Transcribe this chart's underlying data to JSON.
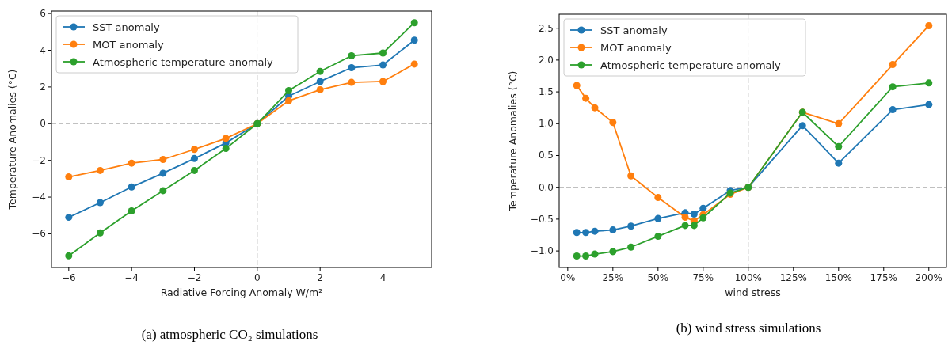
{
  "chart_data": [
    {
      "type": "line",
      "xlabel": "Radiative Forcing Anomaly W/m²",
      "ylabel": "Temperature Anomalies (°C)",
      "x": [
        -6,
        -5,
        -4,
        -3,
        -2,
        -1,
        0,
        1,
        2,
        3,
        4,
        5
      ],
      "series": [
        {
          "name": "SST anomaly",
          "color": "#1f77b4",
          "values": [
            -5.1,
            -4.3,
            -3.45,
            -2.7,
            -1.9,
            -1.05,
            0,
            1.5,
            2.3,
            3.05,
            3.2,
            4.55
          ]
        },
        {
          "name": "MOT anomaly",
          "color": "#ff7f0e",
          "values": [
            -2.9,
            -2.55,
            -2.15,
            -1.95,
            -1.4,
            -0.8,
            0,
            1.25,
            1.85,
            2.25,
            2.3,
            3.25
          ]
        },
        {
          "name": "Atmospheric temperature anomaly",
          "color": "#2ca02c",
          "values": [
            -7.2,
            -5.95,
            -4.75,
            -3.65,
            -2.55,
            -1.35,
            0,
            1.8,
            2.85,
            3.7,
            3.85,
            5.5
          ]
        }
      ],
      "xlim": [
        -6.55,
        5.55
      ],
      "xticks": [
        {
          "value": -6,
          "label": "−6"
        },
        {
          "value": -4,
          "label": "−4"
        },
        {
          "value": -2,
          "label": "−2"
        },
        0,
        2,
        4
      ],
      "ylim": [
        -7.835,
        6.135
      ],
      "yticks": [
        {
          "value": -6,
          "label": "−6"
        },
        {
          "value": -4,
          "label": "−4"
        },
        {
          "value": -2,
          "label": "−2"
        },
        0,
        2,
        4,
        6
      ],
      "ref_lines": [
        {
          "axis": "x",
          "value": 0,
          "color": "#b0b0b0",
          "line_style": "dashed"
        },
        {
          "axis": "y",
          "value": 0,
          "color": "#b0b0b0",
          "line_style": "dashed"
        }
      ],
      "grid": false,
      "legend": "top left",
      "marker": "circle",
      "line_style": "solid",
      "annotations": [
        "(a) atmospheric CO₂ simulations"
      ]
    },
    {
      "type": "line",
      "xlabel": "wind stress",
      "ylabel": "Temperature Anomalies (°C)",
      "x": [
        5,
        10,
        15,
        25,
        35,
        50,
        65,
        70,
        75,
        90,
        100,
        130,
        150,
        180,
        200
      ],
      "series": [
        {
          "name": "SST anomaly",
          "color": "#1f77b4",
          "values": [
            -0.71,
            -0.71,
            -0.69,
            -0.67,
            -0.61,
            -0.49,
            -0.4,
            -0.42,
            -0.33,
            -0.05,
            0,
            0.97,
            0.38,
            1.22,
            1.3
          ]
        },
        {
          "name": "MOT anomaly",
          "color": "#ff7f0e",
          "values": [
            1.6,
            1.4,
            1.25,
            1.02,
            0.18,
            -0.16,
            -0.47,
            -0.53,
            -0.43,
            -0.11,
            0,
            1.18,
            1.0,
            1.93,
            2.54
          ]
        },
        {
          "name": "Atmospheric temperature anomaly",
          "color": "#2ca02c",
          "values": [
            -1.08,
            -1.08,
            -1.05,
            -1.01,
            -0.94,
            -0.77,
            -0.6,
            -0.6,
            -0.48,
            -0.09,
            0,
            1.18,
            0.64,
            1.58,
            1.64
          ]
        }
      ],
      "xlim": [
        -4.75,
        209.75
      ],
      "xticks": [
        {
          "value": 0,
          "label": "0%"
        },
        {
          "value": 25,
          "label": "25%"
        },
        {
          "value": 50,
          "label": "50%"
        },
        {
          "value": 75,
          "label": "75%"
        },
        {
          "value": 100,
          "label": "100%"
        },
        {
          "value": 125,
          "label": "125%"
        },
        {
          "value": 150,
          "label": "150%"
        },
        {
          "value": 175,
          "label": "175%"
        },
        {
          "value": 200,
          "label": "200%"
        }
      ],
      "ylim": [
        -1.26,
        2.72
      ],
      "yticks": [
        {
          "value": -1,
          "label": "−1.0"
        },
        {
          "value": -0.5,
          "label": "−0.5"
        },
        {
          "value": 0,
          "label": "0.0"
        },
        {
          "value": 0.5,
          "label": "0.5"
        },
        {
          "value": 1,
          "label": "1.0"
        },
        {
          "value": 1.5,
          "label": "1.5"
        },
        {
          "value": 2,
          "label": "2.0"
        },
        {
          "value": 2.5,
          "label": "2.5"
        }
      ],
      "ref_lines": [
        {
          "axis": "x",
          "value": 100,
          "color": "#b0b0b0",
          "line_style": "dashed"
        },
        {
          "axis": "y",
          "value": 0,
          "color": "#b0b0b0",
          "line_style": "dashed"
        }
      ],
      "grid": false,
      "legend": "top left",
      "marker": "circle",
      "line_style": "solid",
      "annotations": [
        "(b) wind stress simulations"
      ]
    }
  ]
}
